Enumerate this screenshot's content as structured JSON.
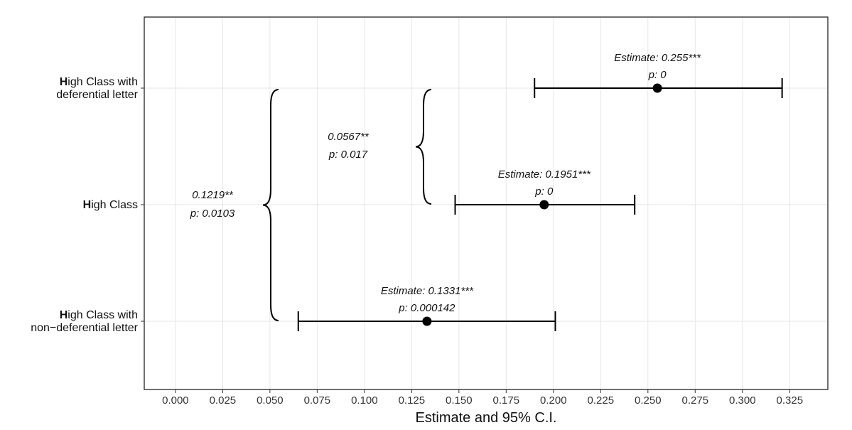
{
  "chart_data": {
    "type": "forest",
    "xlabel": "Estimate and 95% C.I.",
    "xlim": [
      -0.0165,
      0.3452
    ],
    "x_ticks": [
      "0.000",
      "0.025",
      "0.050",
      "0.075",
      "0.100",
      "0.125",
      "0.150",
      "0.175",
      "0.200",
      "0.225",
      "0.250",
      "0.275",
      "0.300",
      "0.325"
    ],
    "grid": true,
    "rows": [
      {
        "label_bold": "H",
        "label_lines": [
          "igh Class with",
          "deferential letter"
        ],
        "estimate": 0.255,
        "ci": [
          0.19,
          0.321
        ],
        "annotation": [
          "Estimate: 0.255***",
          "p: 0"
        ]
      },
      {
        "label_bold": "H",
        "label_lines": [
          "igh Class"
        ],
        "estimate": 0.1951,
        "ci": [
          0.148,
          0.243
        ],
        "annotation": [
          "Estimate: 0.1951***",
          "p: 0"
        ]
      },
      {
        "label_bold": "H",
        "label_lines": [
          "igh Class with",
          "non−deferential letter"
        ],
        "estimate": 0.1331,
        "ci": [
          0.065,
          0.201
        ],
        "annotation": [
          "Estimate: 0.1331***",
          "p: 0.000142"
        ]
      }
    ],
    "comparisons": [
      {
        "from_row": 0,
        "to_row": 1,
        "text": [
          "0.0567**",
          "p: 0.017"
        ]
      },
      {
        "from_row": 0,
        "to_row": 2,
        "text": [
          "0.1219**",
          "p: 0.0103"
        ]
      }
    ],
    "colors": {
      "grid": "#e6e6e6",
      "frame": "#222222",
      "marker": "#000000",
      "text": "#111111"
    }
  }
}
